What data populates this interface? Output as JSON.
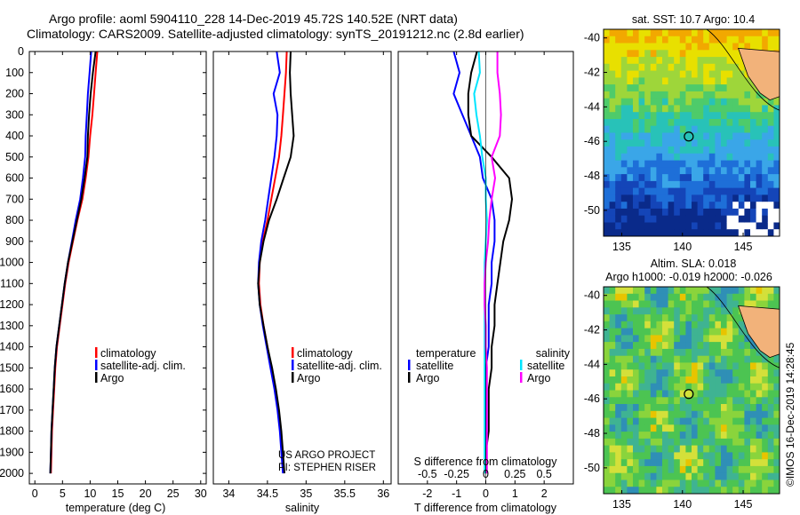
{
  "header": {
    "title_line1": "Argo profile: aoml 5904110_228 14-Dec-2019 45.72S 140.52E (NRT data)",
    "title_line2": "Climatology: CARS2009. Satellite-adjusted climatology: synTS_20191212.nc (2.8d earlier)"
  },
  "colors": {
    "climatology": "#ff0000",
    "satellite": "#0000ff",
    "argo": "#000000",
    "satellite_salinity": "#00e5ff",
    "salinity_argo": "#ff00ff",
    "land": "#f2b27a"
  },
  "legend": {
    "climatology": "climatology",
    "satellite_adj": "satellite-adj. clim.",
    "argo": "Argo",
    "temperature_header": "temperature",
    "salinity_header": "salinity",
    "satellite": "satellite"
  },
  "credits": {
    "project": "US ARGO PROJECT",
    "pi": "PI: STEPHEN RISER",
    "imos": "©IMOS 16-Dec-2019 14:28:45"
  },
  "chart_data": [
    {
      "type": "line",
      "xlabel": "temperature (deg C)",
      "ylabel": "",
      "xlim": [
        -1,
        31
      ],
      "ylim": [
        2050,
        0
      ],
      "xticks": [
        0,
        5,
        10,
        15,
        20,
        25,
        30
      ],
      "yticks": [
        0,
        100,
        200,
        300,
        400,
        500,
        600,
        700,
        800,
        900,
        1000,
        1100,
        1200,
        1300,
        1400,
        1500,
        1600,
        1700,
        1800,
        1900,
        2000
      ],
      "series": [
        {
          "name": "climatology",
          "color": "#ff0000",
          "x": [
            11.3,
            11.0,
            10.7,
            10.4,
            10.0,
            9.7,
            9.2,
            8.6,
            7.7,
            6.9,
            6.1,
            5.5,
            5.0,
            4.5,
            4.0,
            3.7,
            3.5,
            3.3,
            3.1,
            3.0,
            2.9
          ],
          "y": [
            0,
            100,
            200,
            300,
            400,
            500,
            600,
            700,
            800,
            900,
            1000,
            1100,
            1200,
            1300,
            1400,
            1500,
            1600,
            1700,
            1800,
            1900,
            2000
          ]
        },
        {
          "name": "satellite-adj. clim.",
          "color": "#0000ff",
          "x": [
            10.2,
            9.9,
            9.6,
            9.4,
            9.2,
            9.1,
            8.7,
            8.2,
            7.4,
            6.7,
            6.0,
            5.4,
            4.9,
            4.4,
            3.9,
            3.6,
            3.4,
            3.2,
            3.0,
            2.9,
            2.8
          ],
          "y": [
            0,
            100,
            200,
            300,
            400,
            500,
            600,
            700,
            800,
            900,
            1000,
            1100,
            1200,
            1300,
            1400,
            1500,
            1600,
            1700,
            1800,
            1900,
            2000
          ]
        },
        {
          "name": "Argo",
          "color": "#000000",
          "x": [
            11.0,
            10.5,
            10.1,
            9.8,
            9.6,
            9.5,
            9.0,
            8.4,
            7.6,
            6.8,
            6.0,
            5.4,
            4.9,
            4.4,
            3.9,
            3.6,
            3.4,
            3.2,
            3.0,
            2.9,
            2.8
          ],
          "y": [
            0,
            100,
            200,
            300,
            400,
            500,
            600,
            700,
            800,
            900,
            1000,
            1100,
            1200,
            1300,
            1400,
            1500,
            1600,
            1700,
            1800,
            1900,
            2000
          ]
        }
      ]
    },
    {
      "type": "line",
      "xlabel": "salinity",
      "xlim": [
        33.8,
        36.1
      ],
      "ylim": [
        2050,
        0
      ],
      "xticks": [
        34,
        34.5,
        35,
        35.5,
        36
      ],
      "series": [
        {
          "name": "climatology",
          "color": "#ff0000",
          "x": [
            34.75,
            34.74,
            34.72,
            34.7,
            34.68,
            34.65,
            34.6,
            34.55,
            34.5,
            34.44,
            34.4,
            34.39,
            34.41,
            34.45,
            34.5,
            34.55,
            34.6,
            34.64,
            34.67,
            34.69,
            34.71
          ],
          "y": [
            0,
            100,
            200,
            300,
            400,
            500,
            600,
            700,
            800,
            900,
            1000,
            1100,
            1200,
            1300,
            1400,
            1500,
            1600,
            1700,
            1800,
            1900,
            2000
          ]
        },
        {
          "name": "satellite-adj. clim.",
          "color": "#0000ff",
          "x": [
            34.62,
            34.66,
            34.58,
            34.63,
            34.62,
            34.59,
            34.55,
            34.51,
            34.47,
            34.42,
            34.39,
            34.38,
            34.4,
            34.44,
            34.49,
            34.54,
            34.59,
            34.63,
            34.66,
            34.68,
            34.7
          ],
          "y": [
            0,
            100,
            200,
            300,
            400,
            500,
            600,
            700,
            800,
            900,
            1000,
            1100,
            1200,
            1300,
            1400,
            1500,
            1600,
            1700,
            1800,
            1900,
            2000
          ]
        },
        {
          "name": "Argo",
          "color": "#000000",
          "x": [
            34.8,
            34.79,
            34.8,
            34.82,
            34.84,
            34.8,
            34.71,
            34.62,
            34.52,
            34.45,
            34.4,
            34.38,
            34.4,
            34.45,
            34.5,
            34.56,
            34.61,
            34.65,
            34.68,
            34.7,
            34.72
          ],
          "y": [
            0,
            100,
            200,
            300,
            400,
            500,
            600,
            700,
            800,
            900,
            1000,
            1100,
            1200,
            1300,
            1400,
            1500,
            1600,
            1700,
            1800,
            1900,
            2000
          ]
        }
      ]
    },
    {
      "type": "line",
      "xlabel": "T difference from climatology",
      "xlabel2": "S difference from climatology",
      "xlim": [
        -3,
        3
      ],
      "xlim2": [
        -0.75,
        0.75
      ],
      "ylim": [
        2050,
        0
      ],
      "xticks": [
        -2,
        -1,
        0,
        1,
        2
      ],
      "xticks2": [
        -0.5,
        -0.25,
        0,
        0.25,
        0.5
      ],
      "xticklabels2": [
        "-0.5",
        "-0.25",
        "0",
        "0.25",
        "0.5"
      ],
      "series": [
        {
          "name": "temperature satellite",
          "color": "#0000ff",
          "x": [
            -1.1,
            -0.9,
            -1.1,
            -0.8,
            -0.5,
            -0.2,
            -0.1,
            0.2,
            0.3,
            0.3,
            0.2,
            0.2,
            0.1,
            0.1,
            0.1,
            0.0,
            0.0,
            0.0,
            0.0,
            0.0,
            0.0
          ],
          "y": [
            0,
            100,
            200,
            300,
            400,
            500,
            600,
            700,
            800,
            900,
            1000,
            1100,
            1200,
            1300,
            1400,
            1500,
            1600,
            1700,
            1800,
            1900,
            2000
          ]
        },
        {
          "name": "temperature Argo",
          "color": "#000000",
          "x": [
            -0.3,
            -0.5,
            -0.6,
            -0.6,
            -0.5,
            0.2,
            0.8,
            0.9,
            0.8,
            0.6,
            0.5,
            0.4,
            0.3,
            0.3,
            0.2,
            0.2,
            0.1,
            0.1,
            0.1,
            0.0,
            0.0
          ],
          "y": [
            0,
            100,
            200,
            300,
            400,
            500,
            600,
            700,
            800,
            900,
            1000,
            1100,
            1200,
            1300,
            1400,
            1500,
            1600,
            1700,
            1800,
            1900,
            2000
          ]
        },
        {
          "name": "salinity satellite",
          "color": "#00e5ff",
          "x": [
            -0.06,
            -0.05,
            -0.1,
            -0.08,
            -0.05,
            -0.03,
            0.0,
            0.0,
            0.01,
            0.0,
            -0.01,
            -0.01,
            -0.01,
            -0.01,
            -0.01,
            -0.01,
            -0.01,
            -0.01,
            -0.01,
            -0.01,
            -0.01
          ],
          "y": [
            0,
            100,
            200,
            300,
            400,
            500,
            600,
            700,
            800,
            900,
            1000,
            1100,
            1200,
            1300,
            1400,
            1500,
            1600,
            1700,
            1800,
            1900,
            2000
          ]
        },
        {
          "name": "salinity Argo",
          "color": "#ff00ff",
          "x": [
            0.1,
            0.1,
            0.12,
            0.13,
            0.12,
            0.05,
            0.08,
            0.05,
            0.03,
            0.02,
            0.0,
            -0.01,
            -0.01,
            0.0,
            0.0,
            0.01,
            0.01,
            0.01,
            0.01,
            0.01,
            0.01
          ],
          "y": [
            0,
            100,
            200,
            300,
            400,
            500,
            600,
            700,
            800,
            900,
            1000,
            1100,
            1200,
            1300,
            1400,
            1500,
            1600,
            1700,
            1800,
            1900,
            2000
          ]
        }
      ]
    },
    {
      "type": "heatmap",
      "title": "sat. SST: 10.7 Argo: 10.4",
      "xticks": [
        135,
        140,
        145
      ],
      "yticks": [
        -40,
        -42,
        -44,
        -46,
        -48,
        -50
      ],
      "xlim": [
        133.5,
        148
      ],
      "ylim": [
        -51.5,
        -39.5
      ],
      "profile_location": [
        140.52,
        -45.72
      ]
    },
    {
      "type": "heatmap",
      "title": "Altim. SLA: 0.018",
      "subtitle": "Argo h1000: -0.019 h2000: -0.026",
      "xticks": [
        135,
        140,
        145
      ],
      "yticks": [
        -40,
        -42,
        -44,
        -46,
        -48,
        -50
      ],
      "xlim": [
        133.5,
        148
      ],
      "ylim": [
        -51.5,
        -39.5
      ],
      "profile_location": [
        140.52,
        -45.72
      ]
    }
  ]
}
